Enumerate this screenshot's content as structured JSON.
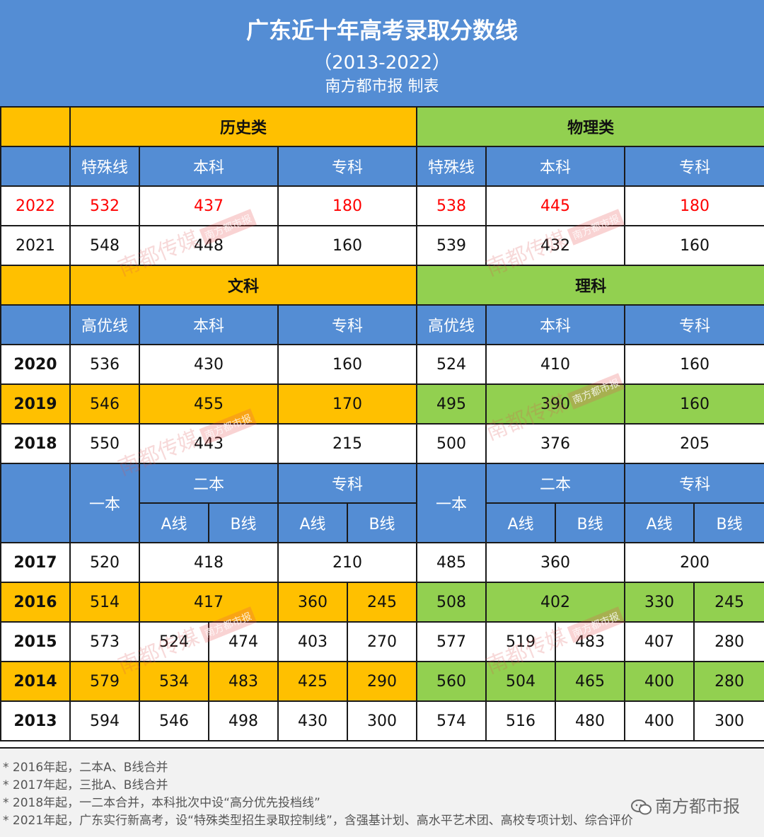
{
  "header": {
    "title": "广东近十年高考录取分数线",
    "subtitle": "（2013-2022）",
    "credit": "南方都市报 制表"
  },
  "section1": {
    "history_label": "历史类",
    "physics_label": "物理类",
    "col_special": "特殊线",
    "col_undergrad": "本科",
    "col_junior": "专科"
  },
  "rows_2022_2021": [
    {
      "year": "2022",
      "values": [
        "532",
        "437",
        "180",
        "538",
        "445",
        "180"
      ]
    },
    {
      "year": "2021",
      "values": [
        "548",
        "448",
        "160",
        "539",
        "432",
        "160"
      ]
    }
  ],
  "section2": {
    "arts_label": "文科",
    "science_label": "理科",
    "col_high": "高优线",
    "col_undergrad": "本科",
    "col_junior": "专科"
  },
  "rows_2020_2018": [
    {
      "year": "2020",
      "values": [
        "536",
        "430",
        "160",
        "524",
        "410",
        "160"
      ]
    },
    {
      "year": "2019",
      "values": [
        "546",
        "455",
        "170",
        "495",
        "390",
        "160"
      ]
    },
    {
      "year": "2018",
      "values": [
        "550",
        "443",
        "215",
        "500",
        "376",
        "205"
      ]
    }
  ],
  "section3": {
    "col_first": "一本",
    "col_second": "二本",
    "col_junior": "专科",
    "col_a": "A线",
    "col_b": "B线"
  },
  "rows_2017": {
    "year": "2017",
    "values": [
      "520",
      "418",
      "210",
      "485",
      "360",
      "200"
    ]
  },
  "rows_2016": {
    "year": "2016",
    "values": [
      "514",
      "417",
      "360",
      "245",
      "508",
      "402",
      "330",
      "245"
    ]
  },
  "rows_2015_2013": [
    {
      "year": "2015",
      "values": [
        "573",
        "524",
        "474",
        "403",
        "270",
        "577",
        "519",
        "483",
        "407",
        "280"
      ]
    },
    {
      "year": "2014",
      "values": [
        "579",
        "534",
        "483",
        "425",
        "290",
        "560",
        "504",
        "465",
        "400",
        "280"
      ]
    },
    {
      "year": "2013",
      "values": [
        "594",
        "546",
        "498",
        "430",
        "300",
        "574",
        "516",
        "480",
        "400",
        "300"
      ]
    }
  ],
  "notes": [
    "* 2016年起，二本A、B线合并",
    "* 2017年起，三批A、B线合并",
    "* 2018年起，一二本合并，本科批次中设“高分优先投档线”",
    "* 2021年起，广东实行新高考，设“特殊类型招生录取控制线”，含强基计划、高水平艺术团、高校专项计划、综合评价"
  ],
  "brand": "南方都市报",
  "brand_icon": "wechat-icon",
  "watermark": {
    "text": "南都传媒",
    "tag": "南方都市报"
  },
  "colors": {
    "header_blue": "#548dd4",
    "gold": "#ffc000",
    "green": "#92d050",
    "highlight_red": "#ff0000"
  }
}
